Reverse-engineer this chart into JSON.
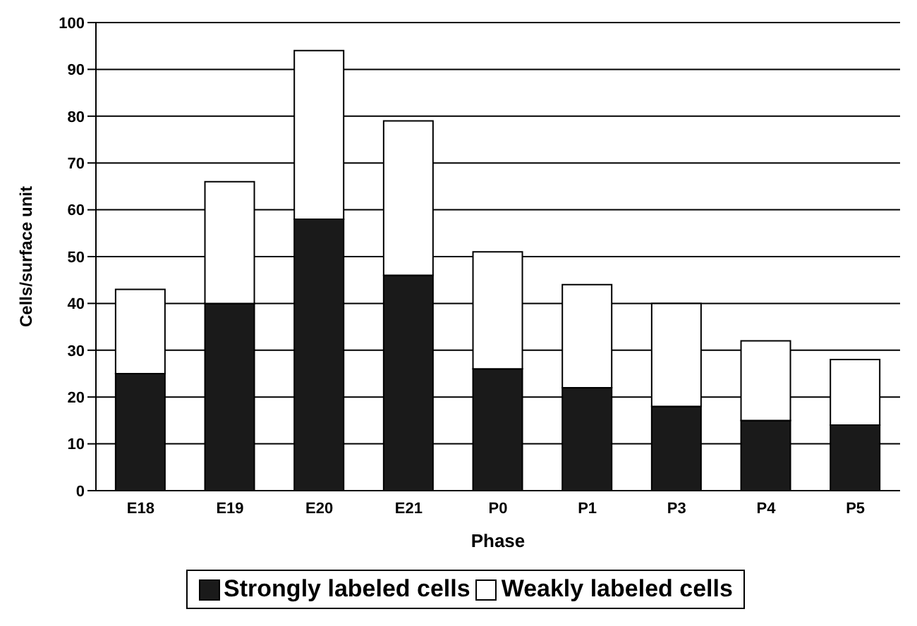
{
  "chart_data": {
    "type": "bar",
    "stacked": true,
    "xlabel": "Phase",
    "ylabel": "Cells/surface unit",
    "categories": [
      "E18",
      "E19",
      "E20",
      "E21",
      "P0",
      "P1",
      "P3",
      "P4",
      "P5"
    ],
    "series": [
      {
        "name": "Strongly labeled cells",
        "color": "#1a1a1a",
        "values": [
          25,
          40,
          58,
          46,
          26,
          22,
          18,
          15,
          14
        ]
      },
      {
        "name": "Weakly labeled cells",
        "color": "#ffffff",
        "values": [
          18,
          26,
          36,
          33,
          25,
          22,
          22,
          17,
          14
        ]
      }
    ],
    "ylim": [
      0,
      100
    ],
    "yticks": [
      0,
      10,
      20,
      30,
      40,
      50,
      60,
      70,
      80,
      90,
      100
    ],
    "grid": "y",
    "legend": "bottom"
  }
}
